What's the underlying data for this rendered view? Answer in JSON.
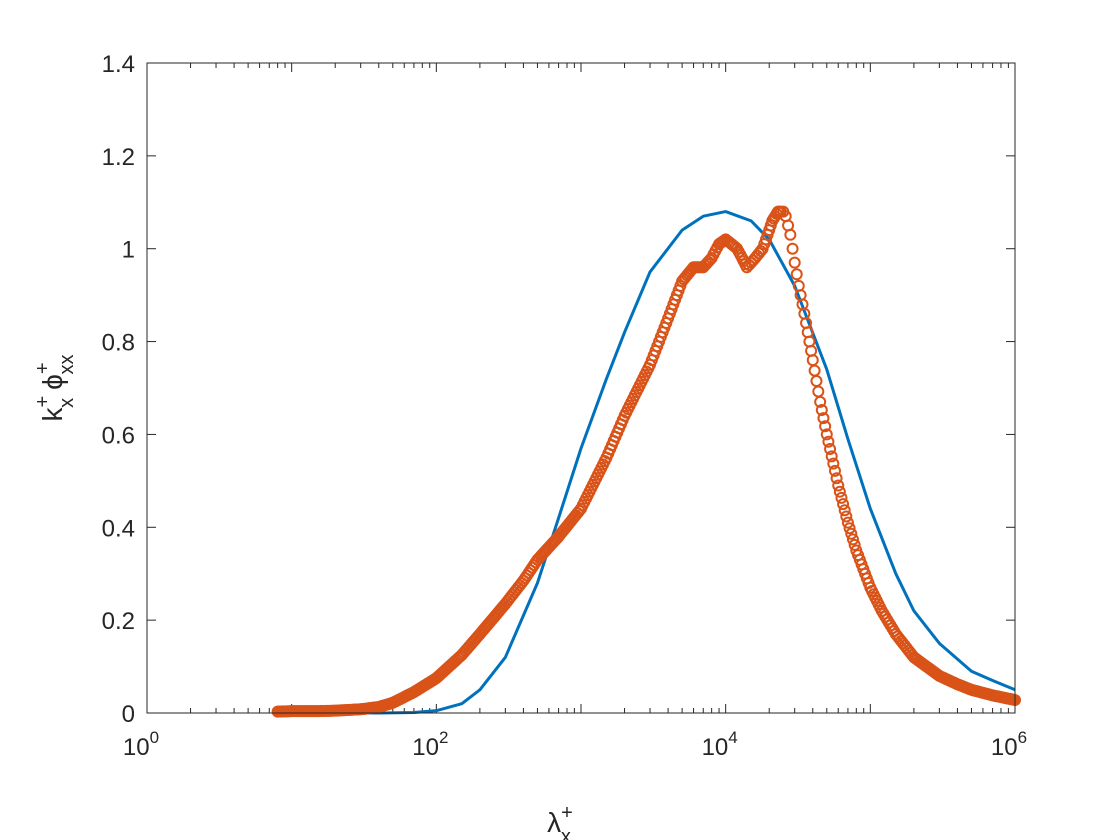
{
  "chart_data": {
    "type": "line",
    "xscale": "log",
    "xlim": [
      1,
      1000000
    ],
    "ylim": [
      0,
      1.4
    ],
    "grid": false,
    "legend": "none",
    "xlabel": {
      "base": "λ",
      "sup": "+",
      "sub": "x"
    },
    "ylabel": {
      "k_base": "k",
      "k_sup": "+",
      "k_sub": "x",
      "phi_base": "ϕ",
      "phi_sup": "+",
      "phi_sub": "xx"
    },
    "x_ticks": [
      {
        "value": 1,
        "base": "10",
        "exp": "0"
      },
      {
        "value": 100,
        "base": "10",
        "exp": "2"
      },
      {
        "value": 10000,
        "base": "10",
        "exp": "4"
      },
      {
        "value": 1000000,
        "base": "10",
        "exp": "6"
      }
    ],
    "y_ticks": [
      {
        "value": 0,
        "label": "0"
      },
      {
        "value": 0.2,
        "label": "0.2"
      },
      {
        "value": 0.4,
        "label": "0.4"
      },
      {
        "value": 0.6,
        "label": "0.6"
      },
      {
        "value": 0.8,
        "label": "0.8"
      },
      {
        "value": 1.0,
        "label": "1"
      },
      {
        "value": 1.2,
        "label": "1.2"
      },
      {
        "value": 1.4,
        "label": "1.4"
      }
    ],
    "series": [
      {
        "color": "#0072BD",
        "style": "line",
        "x": [
          10,
          20,
          40,
          70,
          100,
          150,
          200,
          300,
          500,
          700,
          1000,
          1500,
          2000,
          3000,
          5000,
          7000,
          10000,
          15000,
          20000,
          30000,
          50000,
          70000,
          100000,
          150000,
          200000,
          300000,
          500000,
          700000,
          1000000
        ],
        "y": [
          0,
          0,
          0,
          0.001,
          0.005,
          0.02,
          0.05,
          0.12,
          0.28,
          0.42,
          0.57,
          0.72,
          0.82,
          0.95,
          1.04,
          1.07,
          1.08,
          1.06,
          1.02,
          0.92,
          0.74,
          0.59,
          0.44,
          0.3,
          0.22,
          0.15,
          0.09,
          0.07,
          0.05
        ]
      },
      {
        "color": "#D95319",
        "style": "markers",
        "x": [
          8,
          10,
          15,
          20,
          30,
          40,
          50,
          70,
          100,
          150,
          200,
          300,
          400,
          500,
          700,
          1000,
          1500,
          2000,
          3000,
          4000,
          5000,
          6000,
          7000,
          8000,
          9000,
          10000,
          11000,
          12000,
          13000,
          14000,
          15000,
          16000,
          17000,
          18000,
          19000,
          20000,
          21000,
          22000,
          23000,
          24000,
          25000,
          26000,
          27000,
          28000,
          29000,
          30000,
          32000,
          35000,
          40000,
          45000,
          50000,
          60000,
          70000,
          80000,
          100000,
          120000,
          150000,
          200000,
          300000,
          400000,
          500000,
          700000,
          1000000
        ],
        "y": [
          0.003,
          0.004,
          0.004,
          0.005,
          0.008,
          0.013,
          0.022,
          0.045,
          0.075,
          0.125,
          0.17,
          0.235,
          0.285,
          0.33,
          0.38,
          0.44,
          0.55,
          0.64,
          0.75,
          0.85,
          0.93,
          0.96,
          0.96,
          0.98,
          1.01,
          1.02,
          1.01,
          1.0,
          0.98,
          0.96,
          0.97,
          0.98,
          0.99,
          1.0,
          1.02,
          1.04,
          1.06,
          1.07,
          1.08,
          1.08,
          1.08,
          1.07,
          1.05,
          1.03,
          1.0,
          0.97,
          0.92,
          0.86,
          0.76,
          0.67,
          0.6,
          0.49,
          0.41,
          0.35,
          0.27,
          0.22,
          0.17,
          0.12,
          0.08,
          0.062,
          0.05,
          0.038,
          0.028
        ]
      }
    ]
  }
}
